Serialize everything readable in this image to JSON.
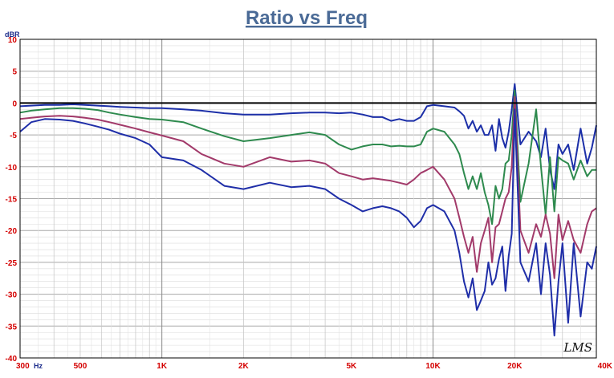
{
  "chart_data": {
    "type": "line",
    "title": "Ratio vs Freq",
    "ylabel": "dBR",
    "xlabel": "",
    "x_scale": "log",
    "xlim": [
      300,
      40000
    ],
    "ylim": [
      -40,
      10
    ],
    "grid": true,
    "legend": "none",
    "logo": "LMS",
    "y_ticks": [
      "10",
      "5",
      "0",
      "-5",
      "-10",
      "-15",
      "-20",
      "-25",
      "-30",
      "-35",
      "-40"
    ],
    "x_ticks": [
      {
        "value": 300,
        "label": "300"
      },
      {
        "value": 500,
        "label": "500"
      },
      {
        "value": 1000,
        "label": "1K"
      },
      {
        "value": 2000,
        "label": "2K"
      },
      {
        "value": 5000,
        "label": "5K"
      },
      {
        "value": 10000,
        "label": "10K"
      },
      {
        "value": 20000,
        "label": "20K"
      },
      {
        "value": 40000,
        "label": "40K"
      }
    ],
    "x_unit_label": "Hz",
    "reference": {
      "value": 0,
      "color": "#000000"
    },
    "series": [
      {
        "color": "#1c2fa8",
        "points": [
          [
            300,
            -0.5
          ],
          [
            330,
            -0.4
          ],
          [
            370,
            -0.3
          ],
          [
            420,
            -0.3
          ],
          [
            470,
            -0.2
          ],
          [
            520,
            -0.3
          ],
          [
            580,
            -0.4
          ],
          [
            640,
            -0.5
          ],
          [
            700,
            -0.6
          ],
          [
            800,
            -0.7
          ],
          [
            900,
            -0.8
          ],
          [
            1000,
            -0.8
          ],
          [
            1200,
            -1.0
          ],
          [
            1400,
            -1.2
          ],
          [
            1700,
            -1.6
          ],
          [
            2000,
            -1.8
          ],
          [
            2500,
            -1.8
          ],
          [
            3000,
            -1.6
          ],
          [
            3500,
            -1.5
          ],
          [
            4000,
            -1.5
          ],
          [
            4500,
            -1.6
          ],
          [
            5000,
            -1.5
          ],
          [
            5500,
            -1.8
          ],
          [
            6000,
            -2.2
          ],
          [
            6500,
            -2.2
          ],
          [
            7000,
            -2.8
          ],
          [
            7500,
            -2.5
          ],
          [
            8000,
            -2.8
          ],
          [
            8500,
            -2.8
          ],
          [
            9000,
            -2.2
          ],
          [
            9500,
            -0.5
          ],
          [
            10000,
            -0.3
          ],
          [
            11000,
            -0.5
          ],
          [
            12000,
            -0.7
          ],
          [
            12500,
            -1.3
          ],
          [
            13000,
            -2.0
          ],
          [
            13500,
            -4.0
          ],
          [
            14000,
            -2.8
          ],
          [
            14500,
            -4.5
          ],
          [
            15000,
            -3.5
          ],
          [
            15500,
            -5.0
          ],
          [
            16000,
            -5.0
          ],
          [
            16500,
            -3.5
          ],
          [
            17000,
            -7.5
          ],
          [
            17500,
            -2.5
          ],
          [
            18000,
            -5.5
          ],
          [
            18500,
            -7.0
          ],
          [
            19000,
            -4.5
          ],
          [
            19500,
            -1.0
          ],
          [
            20000,
            3.0
          ],
          [
            21000,
            -6.5
          ],
          [
            22500,
            -4.5
          ],
          [
            24000,
            -6.0
          ],
          [
            25000,
            -8.5
          ],
          [
            26000,
            -4.0
          ],
          [
            27000,
            -10.5
          ],
          [
            28000,
            -13.5
          ],
          [
            29000,
            -6.5
          ],
          [
            30000,
            -8.0
          ],
          [
            31500,
            -6.5
          ],
          [
            33000,
            -10.5
          ],
          [
            35000,
            -4.0
          ],
          [
            37000,
            -9.5
          ],
          [
            38500,
            -7.0
          ],
          [
            40000,
            -3.5
          ]
        ]
      },
      {
        "color": "#2e8a4e",
        "points": [
          [
            300,
            -1.5
          ],
          [
            330,
            -1.2
          ],
          [
            370,
            -1.0
          ],
          [
            420,
            -0.8
          ],
          [
            470,
            -0.8
          ],
          [
            520,
            -0.9
          ],
          [
            580,
            -1.1
          ],
          [
            640,
            -1.5
          ],
          [
            700,
            -1.8
          ],
          [
            800,
            -2.2
          ],
          [
            900,
            -2.5
          ],
          [
            1000,
            -2.6
          ],
          [
            1200,
            -3.0
          ],
          [
            1400,
            -4.0
          ],
          [
            1700,
            -5.2
          ],
          [
            2000,
            -6.0
          ],
          [
            2500,
            -5.5
          ],
          [
            3000,
            -5.0
          ],
          [
            3500,
            -4.6
          ],
          [
            4000,
            -5.0
          ],
          [
            4500,
            -6.5
          ],
          [
            5000,
            -7.3
          ],
          [
            5500,
            -6.8
          ],
          [
            6000,
            -6.5
          ],
          [
            6500,
            -6.5
          ],
          [
            7000,
            -6.8
          ],
          [
            7500,
            -6.7
          ],
          [
            8000,
            -6.8
          ],
          [
            8500,
            -6.8
          ],
          [
            9000,
            -6.5
          ],
          [
            9500,
            -4.5
          ],
          [
            10000,
            -4.0
          ],
          [
            11000,
            -4.5
          ],
          [
            12000,
            -6.5
          ],
          [
            12500,
            -8.0
          ],
          [
            13000,
            -11.0
          ],
          [
            13500,
            -13.5
          ],
          [
            14000,
            -11.5
          ],
          [
            14500,
            -13.5
          ],
          [
            15000,
            -11.0
          ],
          [
            15500,
            -14.0
          ],
          [
            16000,
            -16.0
          ],
          [
            16500,
            -19.0
          ],
          [
            17000,
            -13.0
          ],
          [
            17500,
            -15.0
          ],
          [
            18000,
            -13.5
          ],
          [
            18500,
            -9.5
          ],
          [
            19000,
            -9.0
          ],
          [
            19500,
            -5.0
          ],
          [
            20000,
            2.0
          ],
          [
            21000,
            -15.5
          ],
          [
            22500,
            -9.5
          ],
          [
            24000,
            -1.0
          ],
          [
            25000,
            -10.0
          ],
          [
            26000,
            -17.5
          ],
          [
            27000,
            -8.5
          ],
          [
            28000,
            -17.0
          ],
          [
            29000,
            -8.5
          ],
          [
            30000,
            -9.0
          ],
          [
            31500,
            -9.5
          ],
          [
            33000,
            -12.0
          ],
          [
            35000,
            -9.0
          ],
          [
            37000,
            -11.5
          ],
          [
            38500,
            -10.5
          ],
          [
            40000,
            -10.5
          ]
        ]
      },
      {
        "color": "#a23a6a",
        "points": [
          [
            300,
            -2.5
          ],
          [
            330,
            -2.3
          ],
          [
            370,
            -2.1
          ],
          [
            420,
            -2.0
          ],
          [
            470,
            -2.1
          ],
          [
            520,
            -2.3
          ],
          [
            580,
            -2.6
          ],
          [
            640,
            -3.0
          ],
          [
            700,
            -3.4
          ],
          [
            800,
            -4.0
          ],
          [
            900,
            -4.6
          ],
          [
            1000,
            -5.1
          ],
          [
            1200,
            -6.0
          ],
          [
            1400,
            -8.0
          ],
          [
            1700,
            -9.5
          ],
          [
            2000,
            -10.0
          ],
          [
            2500,
            -8.5
          ],
          [
            3000,
            -9.2
          ],
          [
            3500,
            -9.0
          ],
          [
            4000,
            -9.5
          ],
          [
            4500,
            -11.0
          ],
          [
            5000,
            -11.5
          ],
          [
            5500,
            -12.0
          ],
          [
            6000,
            -11.8
          ],
          [
            6500,
            -12.0
          ],
          [
            7000,
            -12.2
          ],
          [
            7500,
            -12.5
          ],
          [
            8000,
            -12.8
          ],
          [
            8500,
            -12.0
          ],
          [
            9000,
            -11.0
          ],
          [
            9500,
            -10.5
          ],
          [
            10000,
            -10.0
          ],
          [
            11000,
            -12.0
          ],
          [
            12000,
            -15.0
          ],
          [
            12500,
            -18.0
          ],
          [
            13000,
            -21.0
          ],
          [
            13500,
            -23.5
          ],
          [
            14000,
            -21.0
          ],
          [
            14500,
            -26.5
          ],
          [
            15000,
            -22.0
          ],
          [
            15500,
            -20.0
          ],
          [
            16000,
            -18.0
          ],
          [
            16500,
            -25.0
          ],
          [
            17000,
            -19.5
          ],
          [
            17500,
            -19.0
          ],
          [
            18000,
            -17.0
          ],
          [
            18500,
            -15.0
          ],
          [
            19000,
            -14.0
          ],
          [
            19500,
            -10.0
          ],
          [
            20000,
            1.0
          ],
          [
            21000,
            -20.0
          ],
          [
            22500,
            -23.5
          ],
          [
            24000,
            -19.0
          ],
          [
            25000,
            -21.0
          ],
          [
            26000,
            -17.5
          ],
          [
            27000,
            -20.5
          ],
          [
            28000,
            -27.5
          ],
          [
            29000,
            -17.5
          ],
          [
            30000,
            -21.5
          ],
          [
            31500,
            -18.5
          ],
          [
            33000,
            -21.5
          ],
          [
            35000,
            -23.5
          ],
          [
            37000,
            -19.0
          ],
          [
            38500,
            -17.0
          ],
          [
            40000,
            -16.5
          ]
        ]
      },
      {
        "color": "#1f2ea8",
        "points": [
          [
            300,
            -4.5
          ],
          [
            330,
            -3.0
          ],
          [
            370,
            -2.5
          ],
          [
            420,
            -2.6
          ],
          [
            470,
            -2.8
          ],
          [
            520,
            -3.2
          ],
          [
            580,
            -3.7
          ],
          [
            640,
            -4.2
          ],
          [
            700,
            -4.8
          ],
          [
            800,
            -5.5
          ],
          [
            900,
            -6.5
          ],
          [
            1000,
            -8.5
          ],
          [
            1200,
            -9.0
          ],
          [
            1400,
            -10.5
          ],
          [
            1700,
            -13.0
          ],
          [
            2000,
            -13.5
          ],
          [
            2500,
            -12.5
          ],
          [
            3000,
            -13.2
          ],
          [
            3500,
            -13.0
          ],
          [
            4000,
            -13.5
          ],
          [
            4500,
            -15.0
          ],
          [
            5000,
            -16.0
          ],
          [
            5500,
            -17.0
          ],
          [
            6000,
            -16.5
          ],
          [
            6500,
            -16.2
          ],
          [
            7000,
            -16.5
          ],
          [
            7500,
            -17.0
          ],
          [
            8000,
            -18.0
          ],
          [
            8500,
            -19.5
          ],
          [
            9000,
            -18.5
          ],
          [
            9500,
            -16.5
          ],
          [
            10000,
            -16.0
          ],
          [
            11000,
            -17.0
          ],
          [
            12000,
            -20.0
          ],
          [
            12500,
            -23.5
          ],
          [
            13000,
            -28.0
          ],
          [
            13500,
            -30.5
          ],
          [
            14000,
            -27.5
          ],
          [
            14500,
            -32.5
          ],
          [
            15000,
            -31.0
          ],
          [
            15500,
            -29.5
          ],
          [
            16000,
            -25.0
          ],
          [
            16500,
            -28.5
          ],
          [
            17000,
            -27.5
          ],
          [
            17500,
            -24.5
          ],
          [
            18000,
            -22.5
          ],
          [
            18500,
            -29.5
          ],
          [
            19000,
            -24.0
          ],
          [
            19500,
            -20.5
          ],
          [
            20000,
            -1.0
          ],
          [
            21000,
            -25.0
          ],
          [
            22500,
            -28.0
          ],
          [
            24000,
            -22.0
          ],
          [
            25000,
            -30.0
          ],
          [
            26000,
            -22.0
          ],
          [
            27000,
            -27.0
          ],
          [
            28000,
            -36.5
          ],
          [
            29000,
            -28.0
          ],
          [
            30000,
            -22.0
          ],
          [
            31500,
            -34.5
          ],
          [
            33000,
            -22.0
          ],
          [
            35000,
            -33.5
          ],
          [
            37000,
            -25.0
          ],
          [
            38500,
            -26.0
          ],
          [
            40000,
            -22.5
          ]
        ]
      }
    ]
  }
}
